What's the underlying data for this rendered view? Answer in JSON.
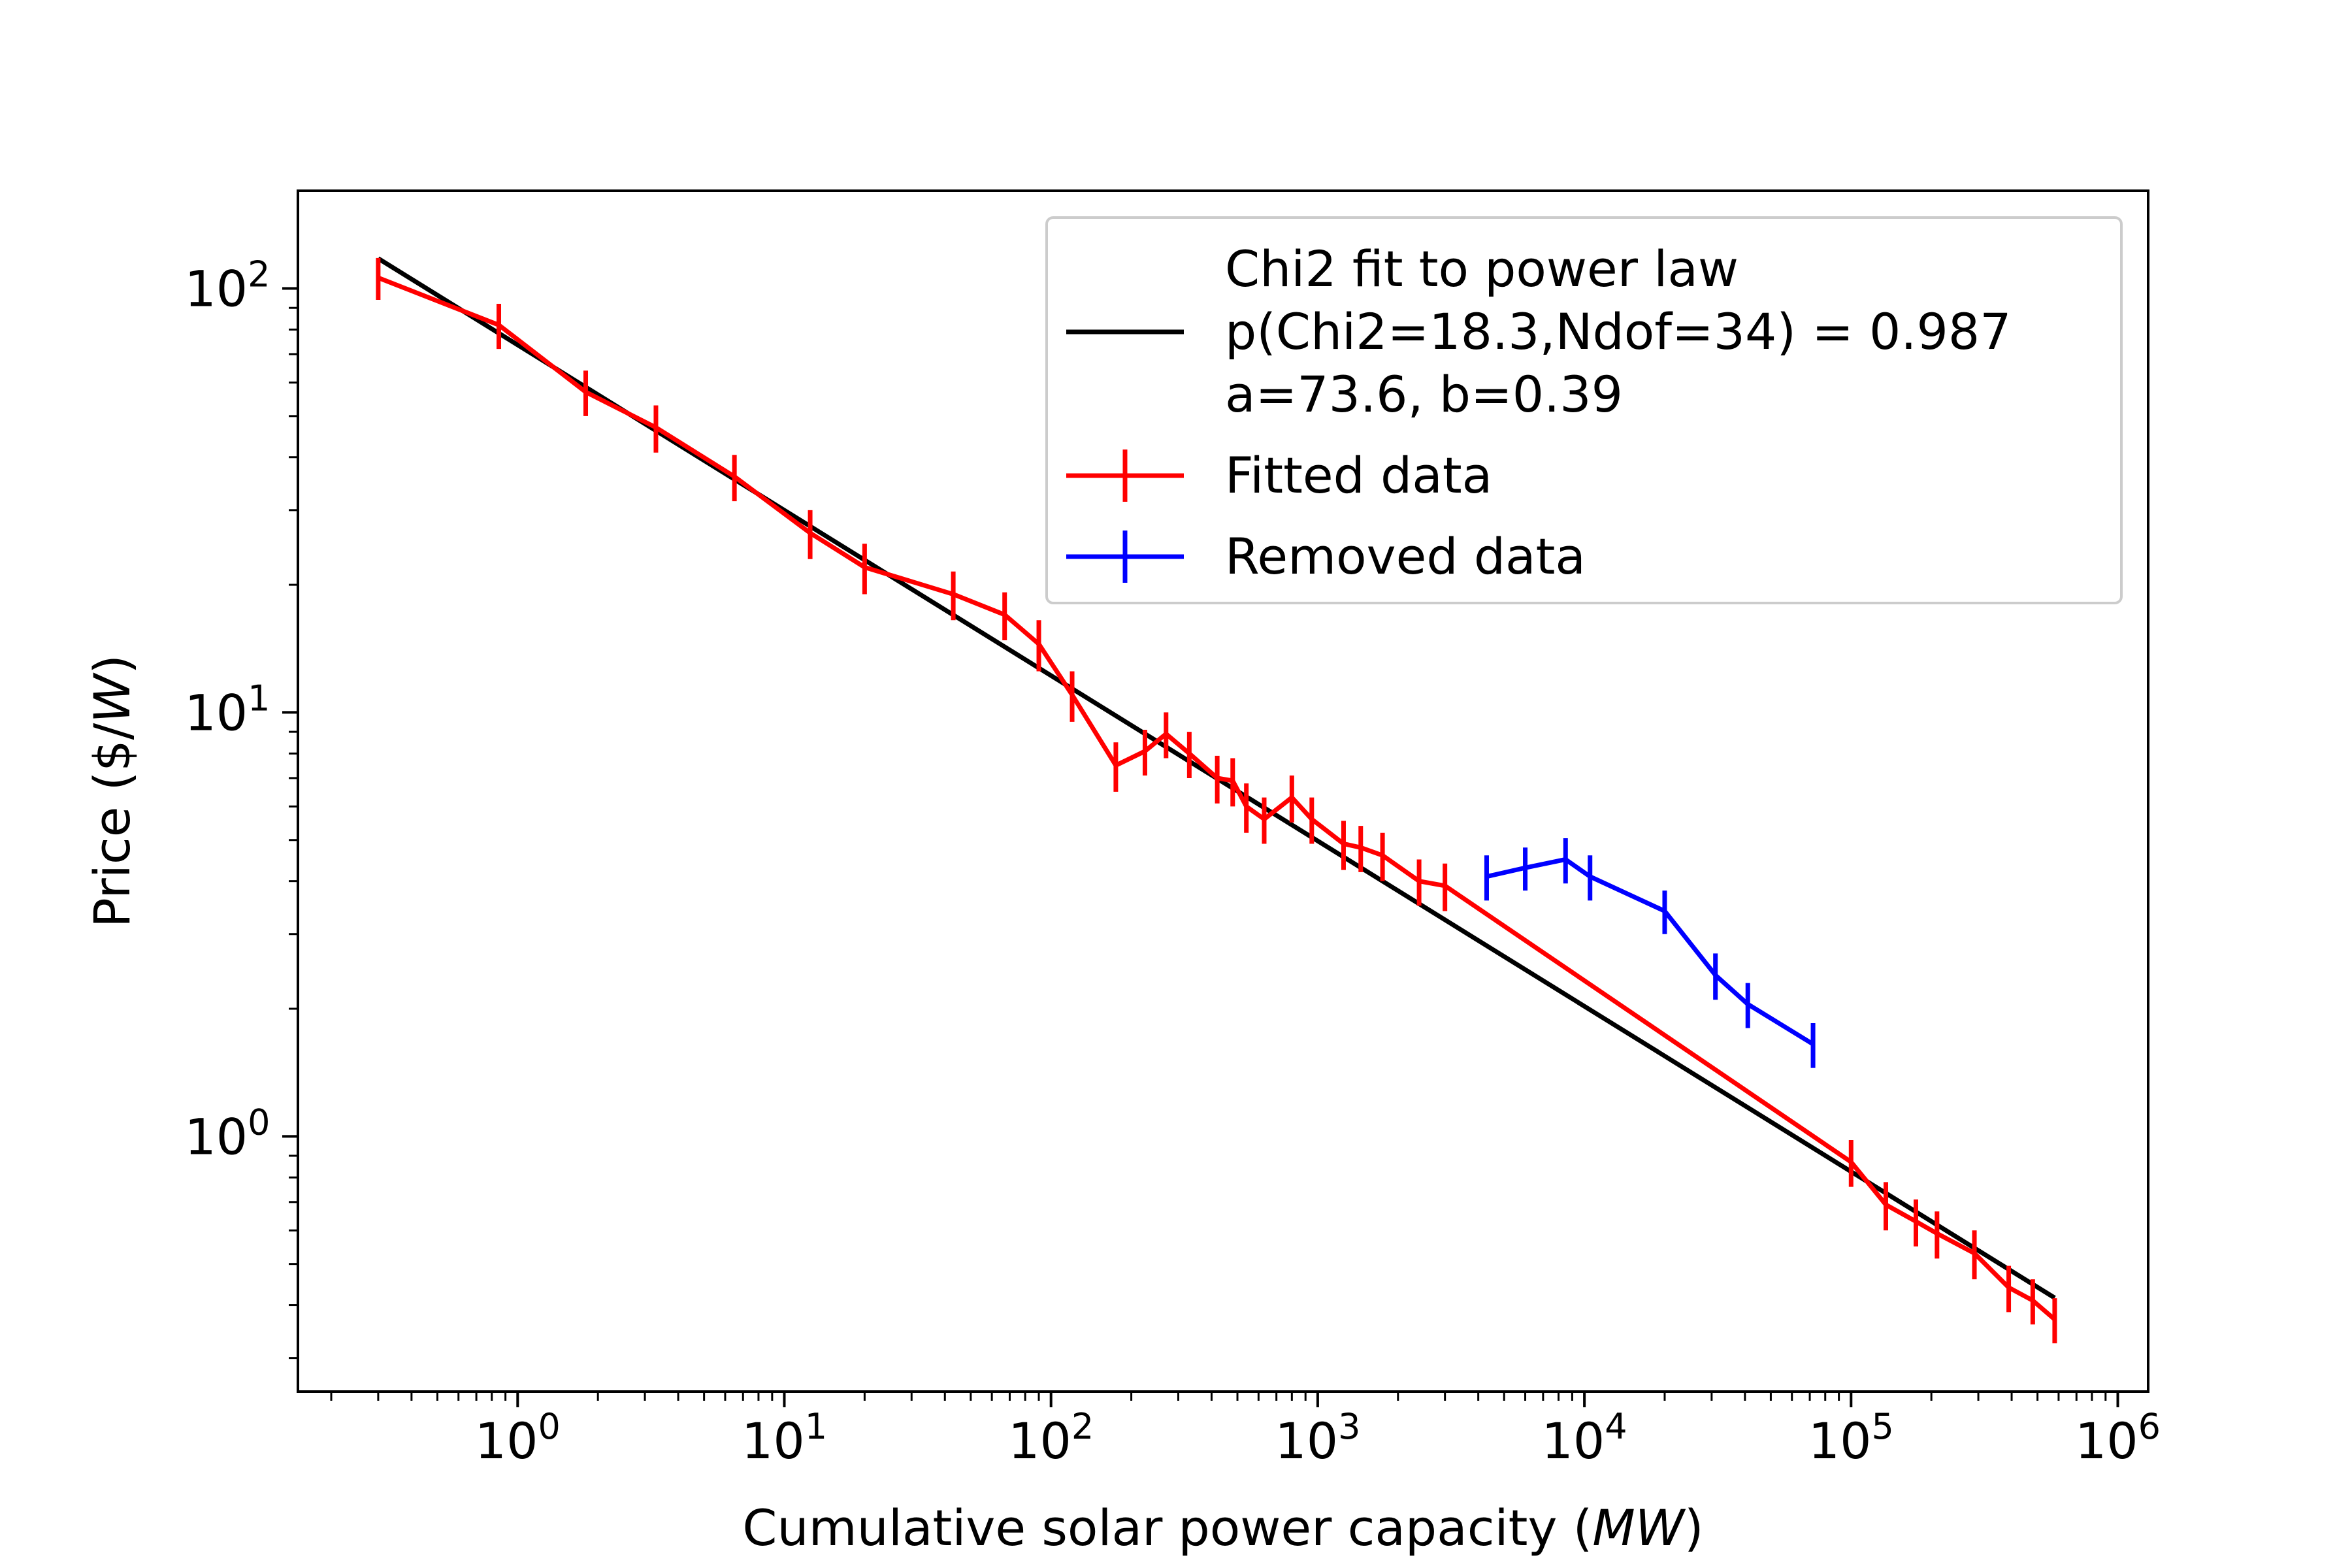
{
  "chart_data": {
    "type": "line",
    "xlabel_prefix": "Cumulative solar power capacity (",
    "xlabel_unit": "MW",
    "xlabel_suffix": ")",
    "ylabel_prefix": "Price ($/",
    "ylabel_unit": "W",
    "ylabel_suffix": ")",
    "x_scale": "log",
    "y_scale": "log",
    "xlim": [
      0.15,
      1300000
    ],
    "ylim": [
      0.25,
      170
    ],
    "x_ticks": [
      {
        "value": 1,
        "base": "10",
        "exp": "0"
      },
      {
        "value": 10,
        "base": "10",
        "exp": "1"
      },
      {
        "value": 100,
        "base": "10",
        "exp": "2"
      },
      {
        "value": 1000,
        "base": "10",
        "exp": "3"
      },
      {
        "value": 10000,
        "base": "10",
        "exp": "4"
      },
      {
        "value": 100000,
        "base": "10",
        "exp": "5"
      },
      {
        "value": 1000000,
        "base": "10",
        "exp": "6"
      }
    ],
    "y_ticks": [
      {
        "value": 1,
        "base": "10",
        "exp": "0"
      },
      {
        "value": 10,
        "base": "10",
        "exp": "1"
      },
      {
        "value": 100,
        "base": "10",
        "exp": "2"
      }
    ],
    "grid": false,
    "legend_position": "top-right",
    "legend": [
      {
        "lines": [
          "Chi2 fit to power law",
          "p(Chi2=18.3,Ndof=34) = 0.987",
          "a=73.6, b=0.39"
        ],
        "color": "#000000",
        "errorbar": false
      },
      {
        "lines": [
          "Fitted data"
        ],
        "color": "#ff0000",
        "errorbar": true
      },
      {
        "lines": [
          "Removed data"
        ],
        "color": "#0000ff",
        "errorbar": true
      }
    ],
    "fit": {
      "a": 73.6,
      "b": 0.39,
      "color": "#000000",
      "x_range": [
        0.3,
        580000
      ]
    },
    "series": [
      {
        "name": "Fitted data",
        "color": "#ff0000",
        "points": [
          [
            0.3,
            106,
            12
          ],
          [
            0.85,
            82,
            10
          ],
          [
            1.8,
            57,
            7
          ],
          [
            3.3,
            47,
            6
          ],
          [
            6.5,
            36,
            4.5
          ],
          [
            12.5,
            26.5,
            3.5
          ],
          [
            20,
            22,
            3
          ],
          [
            43,
            19,
            2.5
          ],
          [
            67,
            17,
            2.2
          ],
          [
            90,
            14.5,
            2
          ],
          [
            120,
            11,
            1.5
          ],
          [
            175,
            7.5,
            1.0
          ],
          [
            225,
            8.1,
            1.0
          ],
          [
            270,
            8.9,
            1.1
          ],
          [
            330,
            8.0,
            1.0
          ],
          [
            420,
            7.0,
            0.9
          ],
          [
            480,
            6.9,
            0.9
          ],
          [
            540,
            6.0,
            0.8
          ],
          [
            630,
            5.6,
            0.7
          ],
          [
            800,
            6.3,
            0.8
          ],
          [
            950,
            5.6,
            0.7
          ],
          [
            1250,
            4.9,
            0.65
          ],
          [
            1450,
            4.8,
            0.6
          ],
          [
            1750,
            4.6,
            0.6
          ],
          [
            2400,
            4.0,
            0.5
          ],
          [
            3000,
            3.9,
            0.5
          ],
          [
            100000,
            0.87,
            0.11
          ],
          [
            135000,
            0.69,
            0.09
          ],
          [
            175000,
            0.63,
            0.08
          ],
          [
            210000,
            0.59,
            0.075
          ],
          [
            290000,
            0.53,
            0.07
          ],
          [
            390000,
            0.44,
            0.055
          ],
          [
            480000,
            0.41,
            0.05
          ],
          [
            580000,
            0.37,
            0.045
          ]
        ]
      },
      {
        "name": "Removed data",
        "color": "#0000ff",
        "points": [
          [
            4300,
            4.1,
            0.5
          ],
          [
            6000,
            4.3,
            0.5
          ],
          [
            8500,
            4.5,
            0.55
          ],
          [
            10500,
            4.1,
            0.5
          ],
          [
            20000,
            3.4,
            0.4
          ],
          [
            31000,
            2.4,
            0.3
          ],
          [
            41000,
            2.05,
            0.25
          ],
          [
            72000,
            1.65,
            0.2
          ]
        ]
      }
    ]
  }
}
